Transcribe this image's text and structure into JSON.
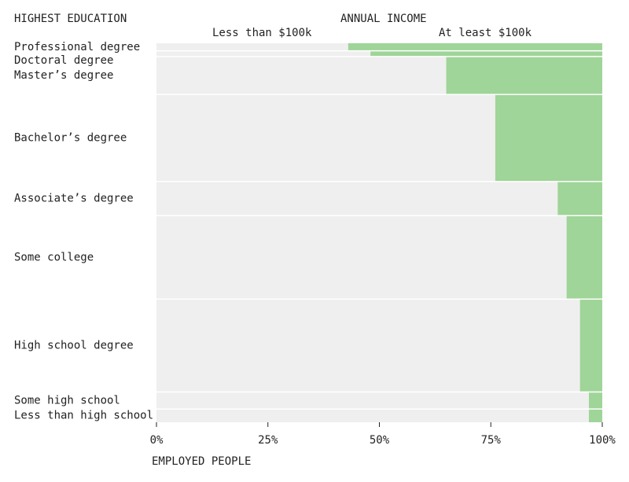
{
  "header": {
    "left_title": "HIGHEST EDUCATION",
    "income_title": "ANNUAL INCOME",
    "less_label": "Less than $100k",
    "atleast_label": "At least $100k"
  },
  "footer": {
    "xlabel": "EMPLOYED PEOPLE"
  },
  "chart_data": {
    "type": "marimekko",
    "title": "ANNUAL INCOME",
    "row_axis_title": "HIGHEST EDUCATION",
    "xlabel": "EMPLOYED PEOPLE",
    "xlim": [
      0,
      100
    ],
    "x_ticks": [
      "0%",
      "25%",
      "50%",
      "75%",
      "100%"
    ],
    "series": [
      {
        "name": "Less than $100k",
        "color": "#efefef"
      },
      {
        "name": "At least $100k",
        "color": "#9fd598"
      }
    ],
    "rows": [
      {
        "label": "Professional degree",
        "share_of_employed": 2.0,
        "pct_at_least_100k": 57
      },
      {
        "label": "Doctoral degree",
        "share_of_employed": 1.5,
        "pct_at_least_100k": 52
      },
      {
        "label": "Master’s degree",
        "share_of_employed": 10.0,
        "pct_at_least_100k": 35
      },
      {
        "label": "Bachelor’s degree",
        "share_of_employed": 23.0,
        "pct_at_least_100k": 24
      },
      {
        "label": "Associate’s degree",
        "share_of_employed": 9.0,
        "pct_at_least_100k": 10
      },
      {
        "label": "Some college",
        "share_of_employed": 22.0,
        "pct_at_least_100k": 8
      },
      {
        "label": "High school degree",
        "share_of_employed": 24.5,
        "pct_at_least_100k": 5
      },
      {
        "label": "Some high school",
        "share_of_employed": 4.5,
        "pct_at_least_100k": 3
      },
      {
        "label": "Less than high school",
        "share_of_employed": 3.5,
        "pct_at_least_100k": 3
      }
    ]
  }
}
